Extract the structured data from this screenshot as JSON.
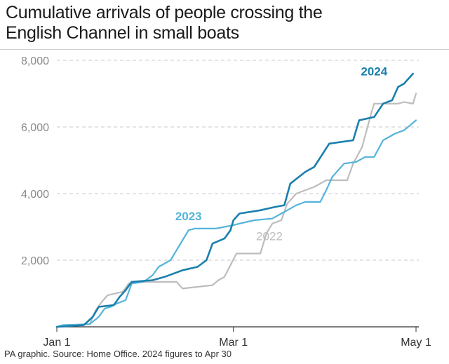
{
  "title_line1": "Cumulative arrivals of people crossing the",
  "title_line2": "English Channel in small boats",
  "source": "PA graphic. Source: Home Office. 2024 figures to Apr 30",
  "colors": {
    "s2024": "#1a7fad",
    "s2023": "#54b4da",
    "s2022": "#bdbdbd",
    "grid": "#c8c8c8",
    "tick_text": "#8a8a8a"
  },
  "chart_data": {
    "type": "line",
    "title": "Cumulative arrivals of people crossing the English Channel in small boats",
    "xlabel": "",
    "ylabel": "",
    "x_ticks": [
      "Jan 1",
      "Mar 1",
      "May 1"
    ],
    "x_tick_days": [
      0,
      59,
      120
    ],
    "ylim": [
      0,
      8000
    ],
    "y_ticks": [
      0,
      2000,
      4000,
      6000,
      8000
    ],
    "y_tick_labels": [
      "",
      "2,000",
      "4,000",
      "6,000",
      "8,000"
    ],
    "grid": true,
    "series": [
      {
        "name": "2022",
        "color": "#bdbdbd",
        "label_at": {
          "x": "Mar 13",
          "y": 2600
        },
        "points": [
          [
            "Jan 1",
            0
          ],
          [
            "Jan 3",
            50
          ],
          [
            "Jan 12",
            80
          ],
          [
            "Jan 14",
            500
          ],
          [
            "Jan 16",
            750
          ],
          [
            "Jan 18",
            950
          ],
          [
            "Jan 23",
            1050
          ],
          [
            "Jan 25",
            1300
          ],
          [
            "Jan 27",
            1350
          ],
          [
            "Feb 10",
            1350
          ],
          [
            "Feb 12",
            1150
          ],
          [
            "Feb 22",
            1250
          ],
          [
            "Feb 24",
            1400
          ],
          [
            "Feb 26",
            1500
          ],
          [
            "Mar 2",
            2200
          ],
          [
            "Mar 10",
            2200
          ],
          [
            "Mar 12",
            2800
          ],
          [
            "Mar 14",
            3100
          ],
          [
            "Mar 17",
            3200
          ],
          [
            "Mar 19",
            3700
          ],
          [
            "Mar 22",
            4000
          ],
          [
            "Mar 28",
            4200
          ],
          [
            "Apr 1",
            4400
          ],
          [
            "Apr 8",
            4400
          ],
          [
            "Apr 10",
            4900
          ],
          [
            "Apr 13",
            5400
          ],
          [
            "Apr 16",
            6400
          ],
          [
            "Apr 17",
            6700
          ],
          [
            "Apr 25",
            6700
          ],
          [
            "Apr 27",
            6750
          ],
          [
            "Apr 30",
            6700
          ],
          [
            "May 1",
            7000
          ]
        ]
      },
      {
        "name": "2023",
        "color": "#54b4da",
        "label_at": {
          "x": "Feb 14",
          "y": 3200
        },
        "points": [
          [
            "Jan 1",
            0
          ],
          [
            "Jan 3",
            50
          ],
          [
            "Jan 12",
            80
          ],
          [
            "Jan 15",
            300
          ],
          [
            "Jan 17",
            550
          ],
          [
            "Jan 19",
            600
          ],
          [
            "Jan 21",
            700
          ],
          [
            "Jan 24",
            800
          ],
          [
            "Jan 26",
            1300
          ],
          [
            "Jan 30",
            1350
          ],
          [
            "Feb 2",
            1550
          ],
          [
            "Feb 4",
            1800
          ],
          [
            "Feb 8",
            2000
          ],
          [
            "Feb 12",
            2600
          ],
          [
            "Feb 14",
            2900
          ],
          [
            "Feb 16",
            2950
          ],
          [
            "Feb 23",
            2950
          ],
          [
            "Feb 26",
            3000
          ],
          [
            "Mar 1",
            3050
          ],
          [
            "Mar 3",
            3100
          ],
          [
            "Mar 8",
            3200
          ],
          [
            "Mar 14",
            3250
          ],
          [
            "Mar 17",
            3400
          ],
          [
            "Mar 19",
            3500
          ],
          [
            "Mar 22",
            3650
          ],
          [
            "Mar 25",
            3750
          ],
          [
            "Mar 30",
            3750
          ],
          [
            "Apr 1",
            4100
          ],
          [
            "Apr 3",
            4500
          ],
          [
            "Apr 7",
            4900
          ],
          [
            "Apr 11",
            4950
          ],
          [
            "Apr 14",
            5100
          ],
          [
            "Apr 17",
            5100
          ],
          [
            "Apr 20",
            5600
          ],
          [
            "Apr 24",
            5800
          ],
          [
            "Apr 27",
            5900
          ],
          [
            "May 1",
            6200
          ]
        ]
      },
      {
        "name": "2024",
        "color": "#1a7fad",
        "label_at": {
          "x": "Apr 17",
          "y": 7550
        },
        "points": [
          [
            "Jan 1",
            0
          ],
          [
            "Jan 10",
            50
          ],
          [
            "Jan 13",
            300
          ],
          [
            "Jan 15",
            600
          ],
          [
            "Jan 20",
            650
          ],
          [
            "Jan 22",
            900
          ],
          [
            "Jan 24",
            1100
          ],
          [
            "Jan 26",
            1350
          ],
          [
            "Feb 2",
            1400
          ],
          [
            "Feb 6",
            1500
          ],
          [
            "Feb 12",
            1700
          ],
          [
            "Feb 17",
            1800
          ],
          [
            "Feb 20",
            2000
          ],
          [
            "Feb 22",
            2500
          ],
          [
            "Feb 26",
            2650
          ],
          [
            "Feb 28",
            2900
          ],
          [
            "Mar 1",
            3200
          ],
          [
            "Mar 3",
            3400
          ],
          [
            "Mar 10",
            3500
          ],
          [
            "Mar 15",
            3600
          ],
          [
            "Mar 18",
            3650
          ],
          [
            "Mar 20",
            4300
          ],
          [
            "Mar 25",
            4650
          ],
          [
            "Mar 28",
            4800
          ],
          [
            "Apr 2",
            5500
          ],
          [
            "Apr 10",
            5600
          ],
          [
            "Apr 12",
            6200
          ],
          [
            "Apr 17",
            6300
          ],
          [
            "Apr 20",
            6700
          ],
          [
            "Apr 23",
            6800
          ],
          [
            "Apr 25",
            7200
          ],
          [
            "Apr 27",
            7300
          ],
          [
            "Apr 30",
            7600
          ]
        ]
      }
    ]
  }
}
